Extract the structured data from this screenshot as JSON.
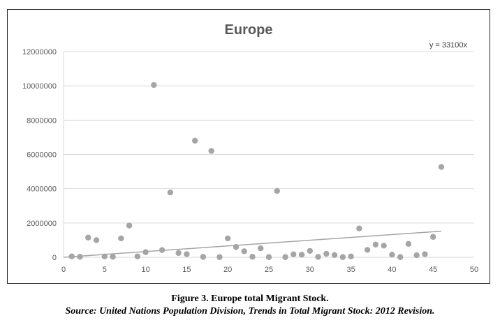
{
  "chart_data": {
    "type": "scatter",
    "title": "Europe",
    "xlabel": "",
    "ylabel": "",
    "xlim": [
      0,
      50
    ],
    "ylim": [
      0,
      12000000
    ],
    "x_ticks": [
      "0",
      "5",
      "10",
      "15",
      "20",
      "25",
      "30",
      "35",
      "40",
      "45",
      "50"
    ],
    "y_ticks": [
      "0",
      "2000000",
      "4000000",
      "6000000",
      "8000000",
      "10000000",
      "12000000"
    ],
    "grid": "horizontal",
    "marker_color": "#a5a5a5",
    "trendline": {
      "equation": "y = 33100x",
      "slope": 33100,
      "x_range": [
        0,
        46
      ],
      "color": "#a5a5a5"
    },
    "points": [
      {
        "x": 1,
        "y": 50000
      },
      {
        "x": 2,
        "y": 30000
      },
      {
        "x": 3,
        "y": 1150000
      },
      {
        "x": 4,
        "y": 1000000
      },
      {
        "x": 5,
        "y": 50000
      },
      {
        "x": 6,
        "y": 30000
      },
      {
        "x": 7,
        "y": 1100000
      },
      {
        "x": 8,
        "y": 1850000
      },
      {
        "x": 9,
        "y": 50000
      },
      {
        "x": 10,
        "y": 300000
      },
      {
        "x": 11,
        "y": 10050000
      },
      {
        "x": 12,
        "y": 420000
      },
      {
        "x": 13,
        "y": 3780000
      },
      {
        "x": 14,
        "y": 250000
      },
      {
        "x": 15,
        "y": 180000
      },
      {
        "x": 16,
        "y": 6800000
      },
      {
        "x": 17,
        "y": 20000
      },
      {
        "x": 18,
        "y": 6200000
      },
      {
        "x": 19,
        "y": 10000
      },
      {
        "x": 20,
        "y": 1100000
      },
      {
        "x": 21,
        "y": 600000
      },
      {
        "x": 22,
        "y": 350000
      },
      {
        "x": 23,
        "y": 30000
      },
      {
        "x": 24,
        "y": 520000
      },
      {
        "x": 25,
        "y": 10000
      },
      {
        "x": 26,
        "y": 3870000
      },
      {
        "x": 27,
        "y": 10000
      },
      {
        "x": 28,
        "y": 170000
      },
      {
        "x": 29,
        "y": 150000
      },
      {
        "x": 30,
        "y": 370000
      },
      {
        "x": 31,
        "y": 20000
      },
      {
        "x": 32,
        "y": 200000
      },
      {
        "x": 33,
        "y": 130000
      },
      {
        "x": 34,
        "y": 10000
      },
      {
        "x": 35,
        "y": 50000
      },
      {
        "x": 36,
        "y": 1680000
      },
      {
        "x": 37,
        "y": 430000
      },
      {
        "x": 38,
        "y": 740000
      },
      {
        "x": 39,
        "y": 680000
      },
      {
        "x": 40,
        "y": 150000
      },
      {
        "x": 41,
        "y": 10000
      },
      {
        "x": 42,
        "y": 780000
      },
      {
        "x": 43,
        "y": 120000
      },
      {
        "x": 44,
        "y": 180000
      },
      {
        "x": 45,
        "y": 1190000
      },
      {
        "x": 46,
        "y": 5270000
      }
    ]
  },
  "caption": {
    "figure": "Figure 3. Europe total Migrant Stock.",
    "source": "Source: United Nations Population Division, Trends in Total Migrant Stock: 2012 Revision."
  }
}
